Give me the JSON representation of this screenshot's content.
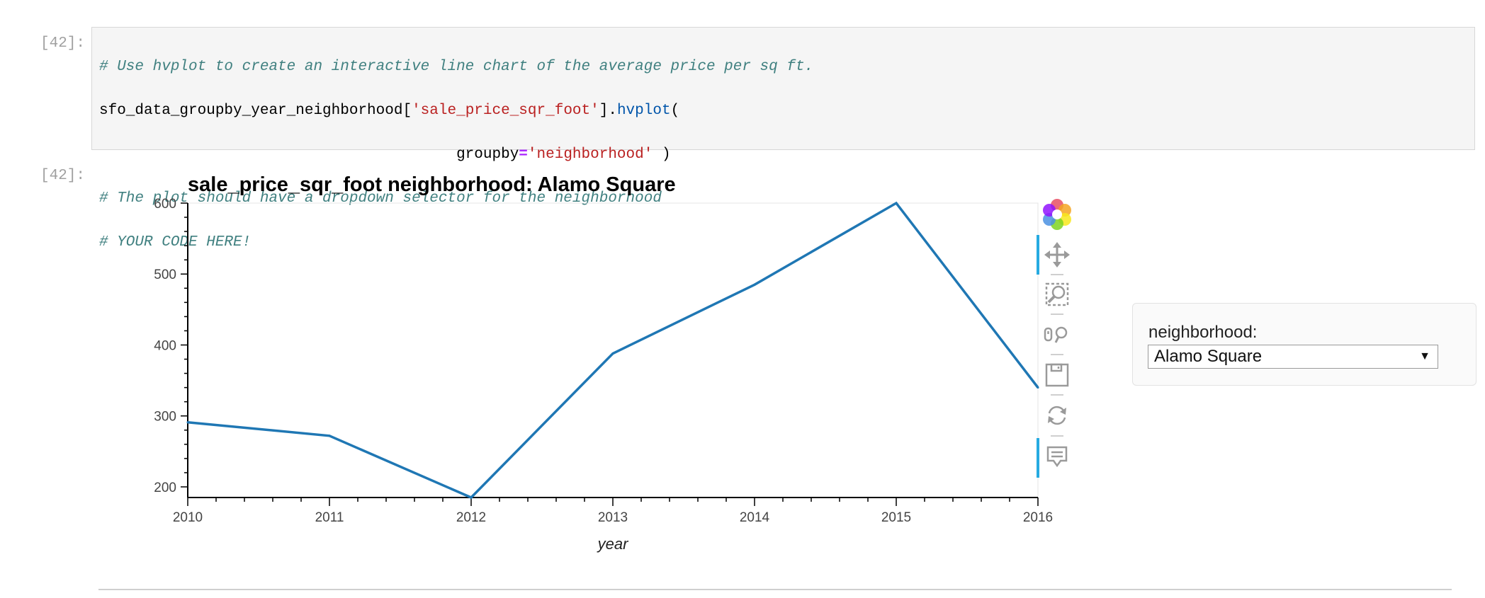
{
  "cells": {
    "in_prompt": "[42]:",
    "out_prompt": "[42]:",
    "code": {
      "line1": "# Use hvplot to create an interactive line chart of the average price per sq ft.",
      "line2_var": "sfo_data_groupby_year_neighborhood[",
      "line2_str": "'sale_price_sqr_foot'",
      "line2_mid": "].",
      "line2_fn": "hvplot",
      "line2_end": "(",
      "line3_pad": "                                        groupby",
      "line3_op": "=",
      "line3_str": "'neighborhood'",
      "line3_end": " )",
      "line4": "# The plot should have a dropdown selector for the neighborhood",
      "line5": "# YOUR CODE HERE!"
    }
  },
  "chart_data": {
    "type": "line",
    "title": "sale_price_sqr_foot  neighborhood: Alamo Square",
    "xlabel": "year",
    "ylabel": "",
    "x": [
      2010,
      2011,
      2012,
      2013,
      2014,
      2015,
      2016
    ],
    "x_tick_labels": [
      "2010",
      "2011",
      "2012",
      "2013",
      "2014",
      "2015",
      "2016"
    ],
    "y_ticks": [
      200,
      300,
      400,
      500,
      600
    ],
    "y_tick_labels": [
      "200",
      "300",
      "400",
      "500",
      "600"
    ],
    "series": [
      {
        "values": [
          291,
          272,
          185,
          388,
          485,
          600,
          340
        ]
      }
    ],
    "xlim": [
      2010,
      2016
    ],
    "ylim": [
      185,
      600
    ],
    "grid": false,
    "line_color": "#1f77b4"
  },
  "toolbar": {
    "accent_color": "#26aae1",
    "tools": [
      "bokeh-logo-icon",
      "pan-icon",
      "box-zoom-icon",
      "wheel-zoom-icon",
      "save-icon",
      "reset-icon",
      "hover-icon"
    ]
  },
  "widget": {
    "label": "neighborhood:",
    "selected": "Alamo Square",
    "arrow": "▼"
  }
}
